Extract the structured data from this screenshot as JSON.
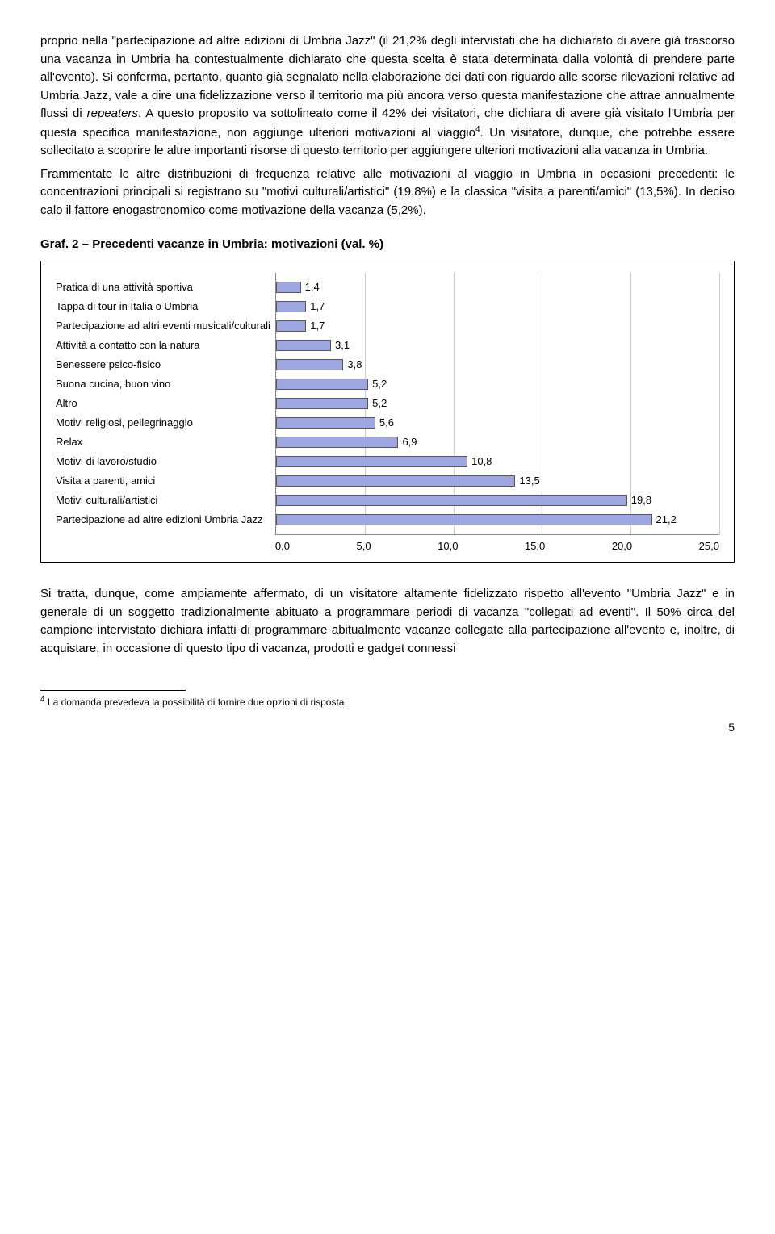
{
  "paragraphs": {
    "p1a": "proprio nella \"partecipazione ad altre edizioni di Umbria Jazz\" (il 21,2% degli intervistati che ha dichiarato di avere già trascorso una vacanza in Umbria ha contestualmente dichiarato che questa scelta è stata determinata dalla volontà di prendere parte all'evento). Si conferma, pertanto, quanto già segnalato nella elaborazione dei dati con riguardo alle scorse rilevazioni relative ad Umbria Jazz, vale a dire una fidelizzazione verso il territorio ma più ancora verso questa manifestazione che attrae annualmente flussi di ",
    "p1_em": "repeaters",
    "p1b": ". A questo proposito va sottolineato come il 42% dei visitatori, che dichiara di avere già visitato l'Umbria per questa specifica manifestazione, non aggiunge ulteriori motivazioni al viaggio",
    "p1_sup": "4",
    "p1c": ". Un visitatore, dunque, che potrebbe essere sollecitato a scoprire le altre importanti risorse di questo territorio per aggiungere ulteriori motivazioni alla vacanza in Umbria.",
    "p2": "Frammentate le altre distribuzioni di frequenza relative alle motivazioni al viaggio in Umbria in occasioni precedenti: le concentrazioni principali si registrano su \"motivi culturali/artistici\" (19,8%) e la classica \"visita a parenti/amici\" (13,5%). In deciso calo il fattore enogastronomico come motivazione della vacanza (5,2%).",
    "p3": "Si tratta, dunque, come ampiamente affermato, di un visitatore altamente fidelizzato rispetto all'evento \"Umbria Jazz\" e in generale di un soggetto tradizionalmente abituato a ",
    "p3_u": "programmare",
    "p3b": " periodi di vacanza \"collegati ad eventi\". Il 50% circa del campione intervistato dichiara infatti di programmare abitualmente vacanze collegate alla partecipazione all'evento e, inoltre, di acquistare, in occasione di questo tipo di vacanza, prodotti e gadget connessi"
  },
  "chart": {
    "title": "Graf. 2 – Precedenti vacanze in Umbria: motivazioni (val. %)",
    "xmax": 25.0,
    "xticks": [
      "0,0",
      "5,0",
      "10,0",
      "15,0",
      "20,0",
      "25,0"
    ],
    "bar_color": "#9ea7e0",
    "border_color": "#555555",
    "items": [
      {
        "label": "Pratica di una attività sportiva",
        "value": 1.4,
        "text": "1,4"
      },
      {
        "label": "Tappa di tour in Italia o Umbria",
        "value": 1.7,
        "text": "1,7"
      },
      {
        "label": "Partecipazione ad altri eventi musicali/culturali",
        "value": 1.7,
        "text": "1,7"
      },
      {
        "label": "Attività a contatto con la natura",
        "value": 3.1,
        "text": "3,1"
      },
      {
        "label": "Benessere psico-fisico",
        "value": 3.8,
        "text": "3,8"
      },
      {
        "label": "Buona cucina, buon vino",
        "value": 5.2,
        "text": "5,2"
      },
      {
        "label": "Altro",
        "value": 5.2,
        "text": "5,2"
      },
      {
        "label": "Motivi religiosi, pellegrinaggio",
        "value": 5.6,
        "text": "5,6"
      },
      {
        "label": "Relax",
        "value": 6.9,
        "text": "6,9"
      },
      {
        "label": "Motivi di lavoro/studio",
        "value": 10.8,
        "text": "10,8"
      },
      {
        "label": "Visita a parenti, amici",
        "value": 13.5,
        "text": "13,5"
      },
      {
        "label": "Motivi culturali/artistici",
        "value": 19.8,
        "text": "19,8"
      },
      {
        "label": "Partecipazione ad altre edizioni Umbria Jazz",
        "value": 21.2,
        "text": "21,2"
      }
    ]
  },
  "footnote": {
    "marker": "4",
    "text": " La domanda prevedeva la possibilità di fornire due opzioni di risposta."
  },
  "pagenum": "5"
}
